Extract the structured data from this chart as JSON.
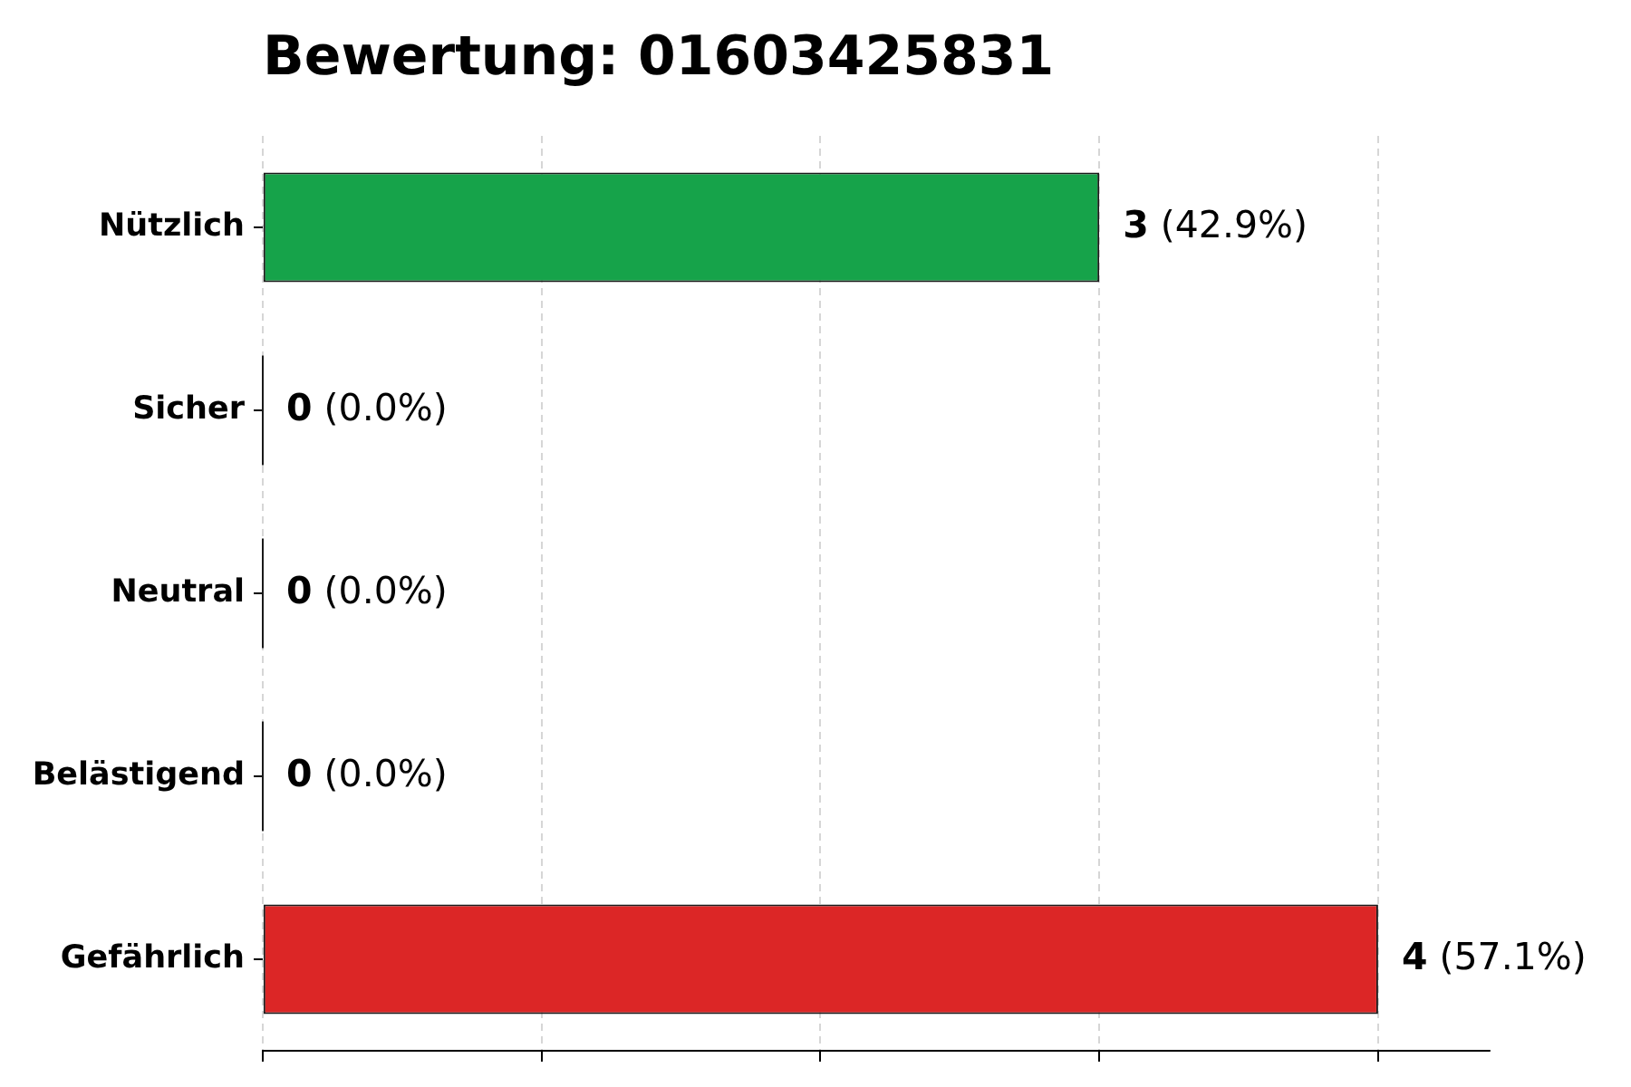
{
  "chart_data": {
    "type": "bar",
    "orientation": "horizontal",
    "title": "Bewertung: 01603425831",
    "categories": [
      "Nützlich",
      "Sicher",
      "Neutral",
      "Belästigend",
      "Gefährlich"
    ],
    "values": [
      3,
      0,
      0,
      0,
      4
    ],
    "colors": [
      "#16a34a",
      "#2563eb",
      "#6b7280",
      "#f59e0b",
      "#dc2626"
    ],
    "value_labels": [
      "3 (42.9%)",
      "0 (0.0%)",
      "0 (0.0%)",
      "0 (0.0%)",
      "4 (57.1%)"
    ],
    "xlim": [
      0,
      4.4
    ],
    "xticks": [
      {
        "value": 0,
        "label": null
      },
      {
        "value": 1,
        "label": null
      },
      {
        "value": 2,
        "label": null
      },
      {
        "value": 3,
        "label": null
      },
      {
        "value": 4,
        "label": null
      }
    ],
    "grid": "x",
    "tick_labels": "y"
  }
}
